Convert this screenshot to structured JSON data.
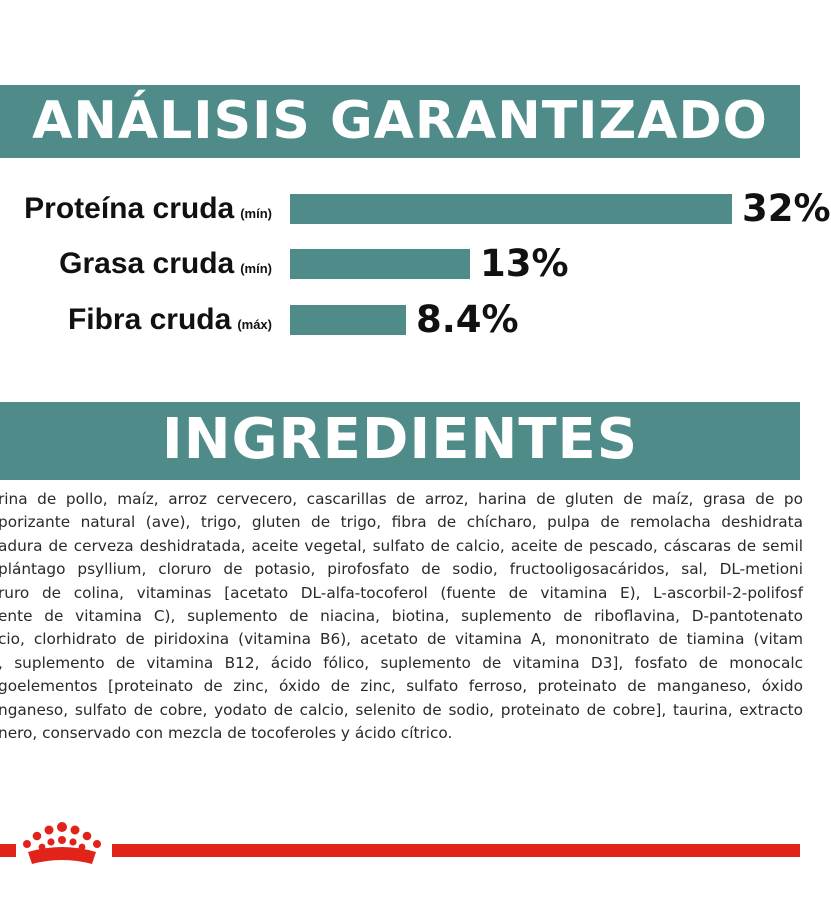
{
  "analysis": {
    "title": "ANÁLISIS GARANTIZADO",
    "bar_color": "#4f8c89",
    "rows": [
      {
        "label": "Proteína cruda",
        "qualifier": "(mín)",
        "value": "32%",
        "percent": 32
      },
      {
        "label": "Grasa cruda",
        "qualifier": "(mín)",
        "value": "13%",
        "percent": 13
      },
      {
        "label": "Fibra cruda",
        "qualifier": "(máx)",
        "value": "8.4%",
        "percent": 8.4
      }
    ]
  },
  "ingredients": {
    "title": "INGREDIENTES",
    "lines": [
      "rina de pollo, maíz, arroz cervecero, cascarillas de arroz, harina de gluten de maíz, grasa de po",
      "porizante natural (ave), trigo, gluten de trigo, fibra de chícharo, pulpa de remolacha deshidrata",
      "adura de cerveza deshidratada, aceite vegetal, sulfato de calcio, aceite de pescado, cáscaras de semil",
      "plántago psyllium, cloruro de potasio, pirofosfato de sodio, fructooligosacáridos, sal, DL-metioni",
      "ruro de colina, vitaminas [acetato DL-alfa-tocoferol (fuente de vitamina E), L-ascorbil-2-polifosf",
      "ente de vitamina C), suplemento de niacina, biotina, suplemento de riboflavina, D-pantotenato",
      "cio, clorhidrato de piridoxina (vitamina B6), acetato de vitamina A, mononitrato de tiamina (vitam",
      ", suplemento de vitamina B12, ácido fólico, suplemento de vitamina D3], fosfato de monocalc",
      "goelementos [proteinato de zinc, óxido de zinc, sulfato ferroso, proteinato de manganeso, óxido",
      "nganeso, sulfato de cobre, yodato de calcio, selenito de sodio, proteinato de cobre], taurina, extracto",
      "nero, conservado con mezcla de tocoferoles y ácido cítrico."
    ]
  },
  "footer": {
    "line_color": "#e2231a",
    "logo_icon": "royal-canin-crown-icon"
  }
}
